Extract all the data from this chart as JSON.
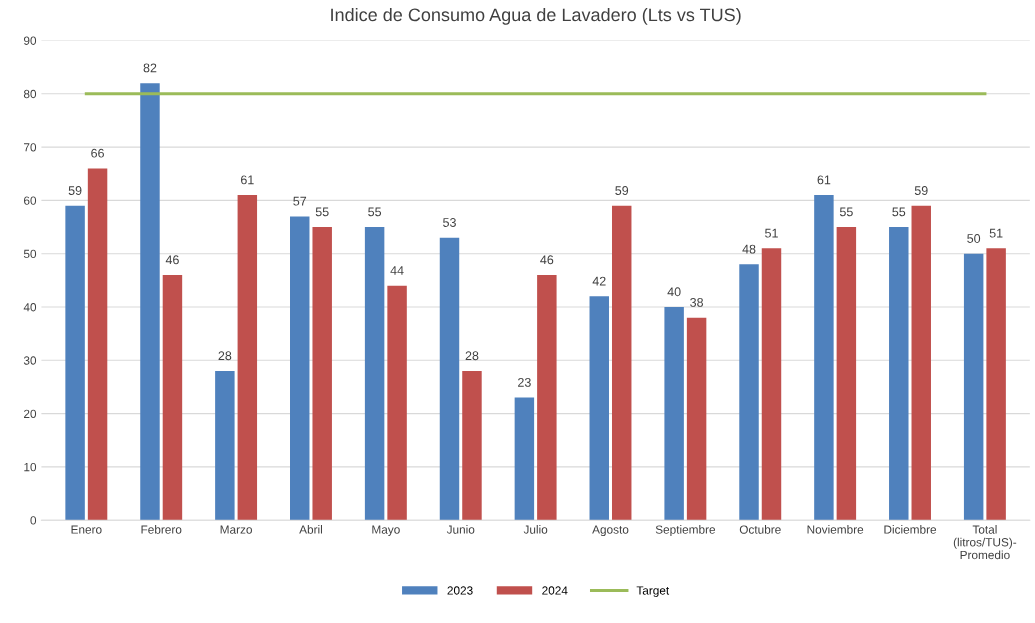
{
  "chart_data": {
    "type": "bar",
    "title": "Indice de Consumo Agua de Lavadero (Lts vs TUS)",
    "categories": [
      "Enero",
      "Febrero",
      "Marzo",
      "Abril",
      "Mayo",
      "Junio",
      "Julio",
      "Agosto",
      "Septiembre",
      "Octubre",
      "Noviembre",
      "Diciembre",
      "Total\n(litros/TUS)-\nPromedio"
    ],
    "series": [
      {
        "name": "2023",
        "color": "#4f81bd",
        "values": [
          59,
          82,
          28,
          57,
          55,
          53,
          23,
          42,
          40,
          48,
          61,
          55,
          50
        ],
        "data_labels": true
      },
      {
        "name": "2024",
        "color": "#c0504d",
        "values": [
          66,
          46,
          61,
          55,
          44,
          28,
          46,
          59,
          38,
          51,
          55,
          59,
          51
        ],
        "data_labels": true
      },
      {
        "name": "Target",
        "type": "line",
        "color": "#9bbb59",
        "values": [
          80,
          80,
          80,
          80,
          80,
          80,
          80,
          80,
          80,
          80,
          80,
          80,
          80
        ],
        "marker": "none"
      }
    ],
    "ylim": [
      0,
      90
    ],
    "yticks": [
      0,
      10,
      20,
      30,
      40,
      50,
      60,
      70,
      80,
      90
    ],
    "grid": "y",
    "legend": "bottom"
  }
}
